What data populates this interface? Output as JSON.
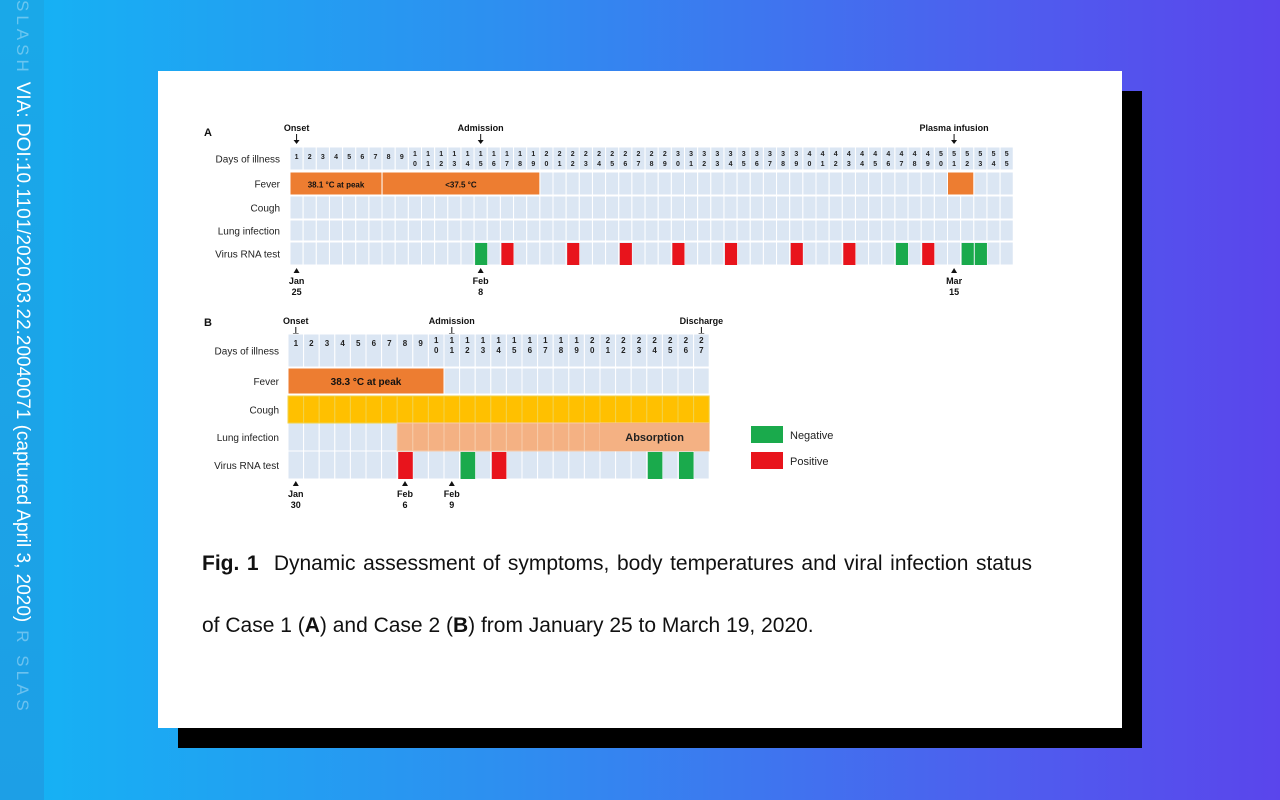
{
  "watermark": {
    "brand": "SLASH",
    "text": "VIA: DOI:10.1101/2020.03.22.20040071 (captured April 3, 2020)",
    "brand_tail": "R SLAS"
  },
  "panelA": {
    "label": "A",
    "events": [
      {
        "text": "Onset",
        "day": 1
      },
      {
        "text": "Admission",
        "day": 15
      },
      {
        "text": "Plasma infusion",
        "day": 51
      }
    ],
    "rows": [
      "Days of illness",
      "Fever",
      "Cough",
      "Lung infection",
      "Virus RNA test"
    ],
    "days": 55,
    "fever": [
      {
        "start": 1,
        "end": 7,
        "label": "38.1 °C at peak"
      },
      {
        "start": 8,
        "end": 19,
        "label": "<37.5 °C"
      },
      {
        "start": 51,
        "end": 52,
        "label": ""
      }
    ],
    "virus_tests": [
      {
        "day": 15,
        "result": "negative"
      },
      {
        "day": 17,
        "result": "positive"
      },
      {
        "day": 22,
        "result": "positive"
      },
      {
        "day": 26,
        "result": "positive"
      },
      {
        "day": 30,
        "result": "positive"
      },
      {
        "day": 34,
        "result": "positive"
      },
      {
        "day": 39,
        "result": "positive"
      },
      {
        "day": 43,
        "result": "positive"
      },
      {
        "day": 47,
        "result": "negative"
      },
      {
        "day": 49,
        "result": "positive"
      },
      {
        "day": 52,
        "result": "negative"
      },
      {
        "day": 53,
        "result": "negative"
      }
    ],
    "dates": [
      {
        "day": 1,
        "month": "Jan",
        "date": "25"
      },
      {
        "day": 15,
        "month": "Feb",
        "date": "8"
      },
      {
        "day": 51,
        "month": "Mar",
        "date": "15"
      }
    ]
  },
  "panelB": {
    "label": "B",
    "events": [
      {
        "text": "Onset",
        "day": 1
      },
      {
        "text": "Admission",
        "day": 11
      },
      {
        "text": "Discharge",
        "day": 27
      }
    ],
    "rows": [
      "Days of illness",
      "Fever",
      "Cough",
      "Lung infection",
      "Virus RNA test"
    ],
    "days": 27,
    "fever": [
      {
        "start": 1,
        "end": 10,
        "label": "38.3 °C  at peak"
      }
    ],
    "cough": {
      "start": 1,
      "end": 27
    },
    "lung": {
      "start": 8,
      "end": 27,
      "label": "Absorption",
      "absorption_start": 21
    },
    "virus_tests": [
      {
        "day": 8,
        "result": "positive"
      },
      {
        "day": 12,
        "result": "negative"
      },
      {
        "day": 14,
        "result": "positive"
      },
      {
        "day": 24,
        "result": "negative"
      },
      {
        "day": 26,
        "result": "negative"
      }
    ],
    "dates": [
      {
        "day": 1,
        "month": "Jan",
        "date": "30"
      },
      {
        "day": 8,
        "month": "Feb",
        "date": "6"
      },
      {
        "day": 11,
        "month": "Feb",
        "date": "9"
      }
    ]
  },
  "legend": [
    {
      "label": "Negative",
      "color": "#1aaa4c"
    },
    {
      "label": "Positive",
      "color": "#e8141c"
    }
  ],
  "colors": {
    "cell": "#dbe6f3",
    "grid": "#ffffff",
    "fever": "#ed7d31",
    "cough": "#ffc000",
    "lung": "#f4b183",
    "negative": "#1aaa4c",
    "positive": "#e8141c"
  },
  "caption": {
    "fig": "Fig. 1",
    "t1": "Dynamic assessment of symptoms, body temperatures and viral infection status of Case 1 (",
    "a": "A",
    "t2": ") and Case 2 (",
    "b": "B",
    "t3": ")   from January 25 to March 19, 2020."
  }
}
